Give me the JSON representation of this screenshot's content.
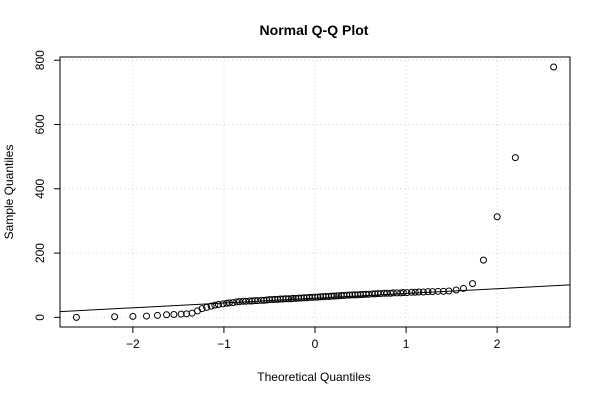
{
  "chart_data": {
    "type": "scatter",
    "title": "Normal Q-Q Plot",
    "xlabel": "Theoretical Quantiles",
    "ylabel": "Sample Quantiles",
    "xlim": [
      -2.8,
      2.8
    ],
    "ylim": [
      -30,
      810
    ],
    "x_ticks": [
      -2,
      -1,
      0,
      1,
      2
    ],
    "x_tick_labels": [
      "−2",
      "−1",
      "0",
      "1",
      "2"
    ],
    "y_ticks": [
      0,
      200,
      400,
      600,
      800
    ],
    "y_tick_labels": [
      "0",
      "200",
      "400",
      "600",
      "800"
    ],
    "grid": true,
    "grid_style": "dotted",
    "point_style": "open-circle",
    "reference_line": {
      "type": "qqline",
      "points": [
        [
          -2.8,
          18
        ],
        [
          2.8,
          101
        ]
      ]
    },
    "series": [
      {
        "x": [
          -2.62,
          -2.2,
          -2.0,
          -1.85,
          -1.73,
          -1.63,
          -1.55,
          -1.47,
          -1.41,
          -1.35,
          -1.29,
          -1.24,
          -1.19,
          -1.14,
          -1.1,
          -1.06,
          -1.01,
          -0.97,
          -0.94,
          -0.9,
          -0.86,
          -0.83,
          -0.79,
          -0.76,
          -0.72,
          -0.69,
          -0.66,
          -0.63,
          -0.59,
          -0.56,
          -0.53,
          -0.5,
          -0.47,
          -0.44,
          -0.41,
          -0.38,
          -0.35,
          -0.32,
          -0.29,
          -0.26,
          -0.24,
          -0.21,
          -0.18,
          -0.15,
          -0.12,
          -0.09,
          -0.06,
          -0.03,
          0.0,
          0.03,
          0.06,
          0.09,
          0.12,
          0.15,
          0.18,
          0.21,
          0.24,
          0.26,
          0.29,
          0.32,
          0.35,
          0.38,
          0.41,
          0.44,
          0.47,
          0.5,
          0.53,
          0.56,
          0.59,
          0.63,
          0.66,
          0.69,
          0.72,
          0.76,
          0.79,
          0.83,
          0.86,
          0.9,
          0.94,
          0.97,
          1.01,
          1.06,
          1.1,
          1.14,
          1.19,
          1.24,
          1.29,
          1.35,
          1.41,
          1.47,
          1.55,
          1.63,
          1.73,
          1.85,
          2.0,
          2.2,
          2.62
        ],
        "y": [
          0,
          2,
          3,
          4,
          6,
          8,
          9,
          10,
          11,
          13,
          20,
          27,
          31,
          35,
          38,
          40,
          42,
          44,
          45,
          46,
          48,
          49,
          50,
          50,
          51,
          51,
          52,
          52,
          53,
          53,
          54,
          55,
          55,
          56,
          56,
          57,
          57,
          58,
          58,
          58,
          59,
          59,
          60,
          60,
          61,
          61,
          62,
          62,
          63,
          63,
          64,
          64,
          65,
          65,
          66,
          66,
          67,
          67,
          68,
          68,
          69,
          69,
          70,
          70,
          70,
          71,
          71,
          72,
          72,
          73,
          73,
          74,
          74,
          75,
          75,
          75,
          76,
          76,
          76,
          77,
          77,
          78,
          78,
          79,
          79,
          80,
          80,
          81,
          81,
          82,
          85,
          90,
          105,
          178,
          313,
          497,
          779
        ]
      }
    ]
  }
}
